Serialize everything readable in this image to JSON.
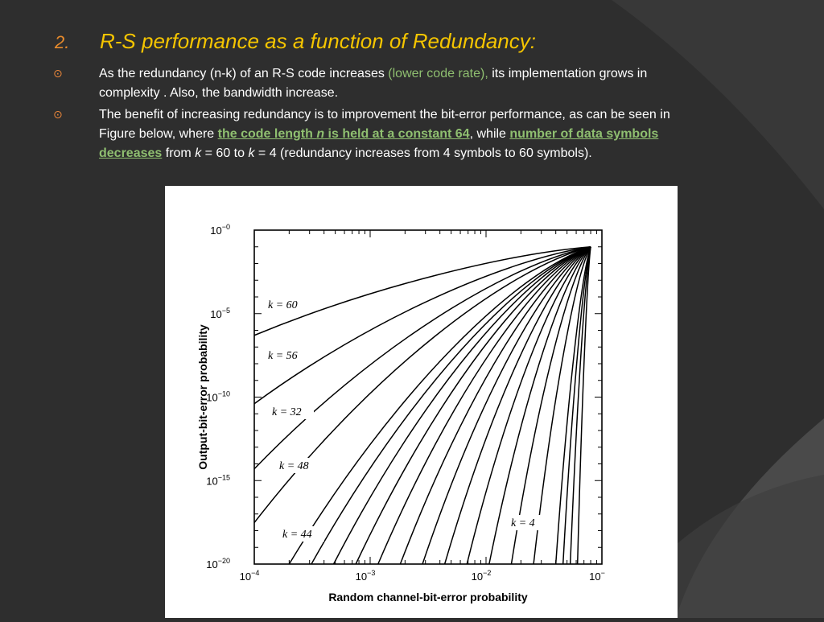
{
  "title": {
    "number": "2.",
    "text": "R-S performance as a function of Redundancy:"
  },
  "bullets": [
    {
      "a": "As the redundancy (n-k) of an R-S code increases ",
      "b": "(lower code rate),",
      "c": " its implementation grows in complexity . Also, the bandwidth increase."
    },
    {
      "a": "The benefit of increasing redundancy is to improvement the bit-error performance, as can be seen in Figure below, where ",
      "b1": "the code length ",
      "b2": "n",
      "b3": "  is held at a constant 64",
      "c": ", while ",
      "d": "number of data symbols decreases",
      "e": " from ",
      "f": "k",
      "g": " = 60 to ",
      "h": "k",
      "i": " = 4 (redundancy increases from 4 symbols to 60 symbols)."
    }
  ],
  "chart_data": {
    "type": "line",
    "xlabel": "Random channel-bit-error probability",
    "ylabel": "Output-bit-error probability",
    "x_scale": "log",
    "y_scale": "log",
    "xlim": [
      0.0001,
      0.1
    ],
    "ylim": [
      1e-20,
      1
    ],
    "xticks": [
      {
        "value": 0.0001,
        "base": "10",
        "exp": "−4"
      },
      {
        "value": 0.001,
        "base": "10",
        "exp": "−3"
      },
      {
        "value": 0.01,
        "base": "10",
        "exp": "−2"
      },
      {
        "value": 0.1,
        "base": "10",
        "exp": "−"
      }
    ],
    "yticks": [
      {
        "value": 1,
        "base": "10",
        "exp": "−0"
      },
      {
        "value": 1e-05,
        "base": "10",
        "exp": "−5"
      },
      {
        "value": 1e-10,
        "base": "10",
        "exp": "−10"
      },
      {
        "value": 1e-15,
        "base": "10",
        "exp": "−15"
      },
      {
        "value": 1e-20,
        "base": "10",
        "exp": "−20"
      }
    ],
    "labeled_curves": [
      {
        "name": "k = 60",
        "start": [
          0.0001,
          5e-07
        ]
      },
      {
        "name": "k = 56",
        "start": [
          0.0001,
          4e-11
        ]
      },
      {
        "name": "k = 32",
        "start": [
          0.0001,
          5e-15
        ]
      },
      {
        "name": "k = 48",
        "start": [
          0.0001,
          3e-18
        ]
      },
      {
        "name": "k = 44",
        "start": [
          0.0002,
          1e-20
        ]
      },
      {
        "name": "k = 4",
        "start": [
          0.04,
          1e-20
        ]
      }
    ],
    "convergence_point": [
      0.08,
      0.1
    ]
  },
  "colors": {
    "background": "#2e2e2e",
    "title": "#f5c500",
    "title_number": "#e88b2c",
    "body_text": "#ffffff",
    "highlight": "#8fbf70",
    "bullet_mark": "#e8853a"
  },
  "icons": {
    "bullet": "circled-dot-icon"
  }
}
